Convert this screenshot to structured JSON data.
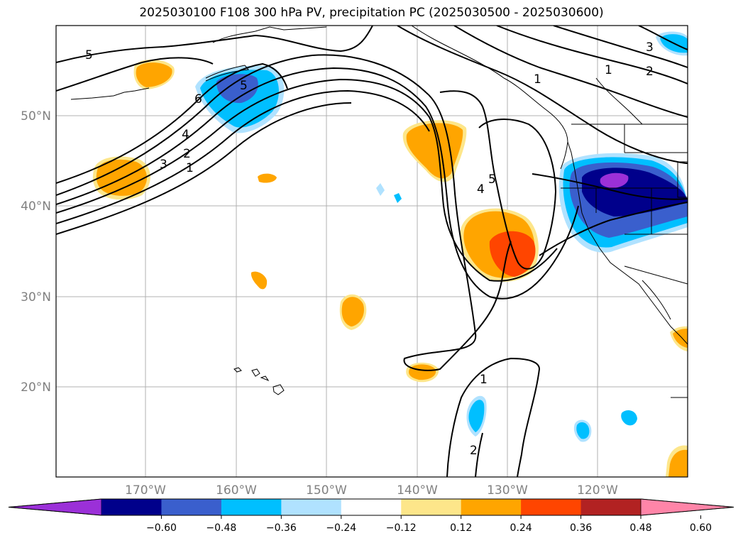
{
  "title": "2025030100 F108 300 hPa PV, precipitation PC (2025030500 - 2025030600)",
  "map": {
    "lat_labels": [
      "50°N",
      "40°N",
      "30°N",
      "20°N"
    ],
    "lon_labels": [
      "170°W",
      "160°W",
      "150°W",
      "140°W",
      "130°W",
      "120°W"
    ],
    "contour_labels": [
      "5",
      "6",
      "5",
      "4",
      "3",
      "2",
      "1",
      "1",
      "1",
      "2",
      "3",
      "5",
      "4",
      "1",
      "2"
    ]
  },
  "colorbar": {
    "tick_labels": [
      "−0.60",
      "−0.48",
      "−0.36",
      "−0.24",
      "−0.12",
      "0.12",
      "0.24",
      "0.36",
      "0.48",
      "0.60"
    ],
    "colors": [
      "#9b30d8",
      "#00008b",
      "#3a5fcd",
      "#00bfff",
      "#b0e2ff",
      "#ffffff",
      "#fde68a",
      "#ffa500",
      "#ff4500",
      "#b22222",
      "#ff85a8"
    ]
  }
}
